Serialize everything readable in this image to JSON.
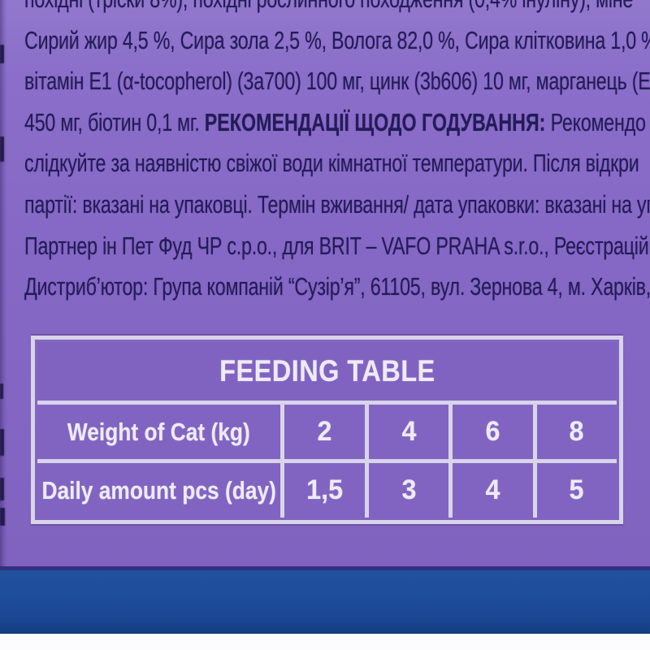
{
  "package_text": {
    "line1": "похідні (тріски 8%), похідні рослинного походження (0,4% інуліну), міне",
    "line2": "Сирий жир 4,5 %, Сира зола 2,5 %, Волога 82,0 %, Сира клітковина 1,0 %",
    "line3": "вітамін Е1 (α-tocopherol) (3а700) 100 мг, цинк (3b606) 10 мг, марганець (Е",
    "line4_pre": "450 мг, біотин 0,1 мг. ",
    "line4_bold": "РЕКОМЕНДАЦІЇ ЩОДО ГОДУВАННЯ:",
    "line4_post": " Рекомендо",
    "line5": "слідкуйте за наявністю свіжої води кімнатної температури. Після відкри",
    "line6": "партії: вказані на упаковці. Термін вживання/ дата упаковки: вказані на уп",
    "line7": "Партнер ін Пет Фуд ЧР с.р.о., для BRIT – VAFO PRAHA s.r.o., Реєстраційн",
    "line8": "Дистриб’ютор: Група компаній “Сузір’я”, 61105, вул. Зернова 4, м. Харків, У"
  },
  "feeding_table": {
    "title": "FEEDING TABLE",
    "rows": [
      {
        "label": "Weight of Cat (kg)",
        "values": [
          "2",
          "4",
          "6",
          "8"
        ]
      },
      {
        "label": "Daily amount pcs (day)",
        "values": [
          "1,5",
          "3",
          "4",
          "5"
        ]
      }
    ]
  },
  "colors": {
    "background_purple": "#8468c4",
    "table_border_white": "#d9d4e8",
    "text_indigo": "#241b58",
    "table_text_white": "#eeeaf6",
    "bottom_band_blue": "#1d4c9c",
    "bottom_strip_white": "#fcfcfe"
  }
}
